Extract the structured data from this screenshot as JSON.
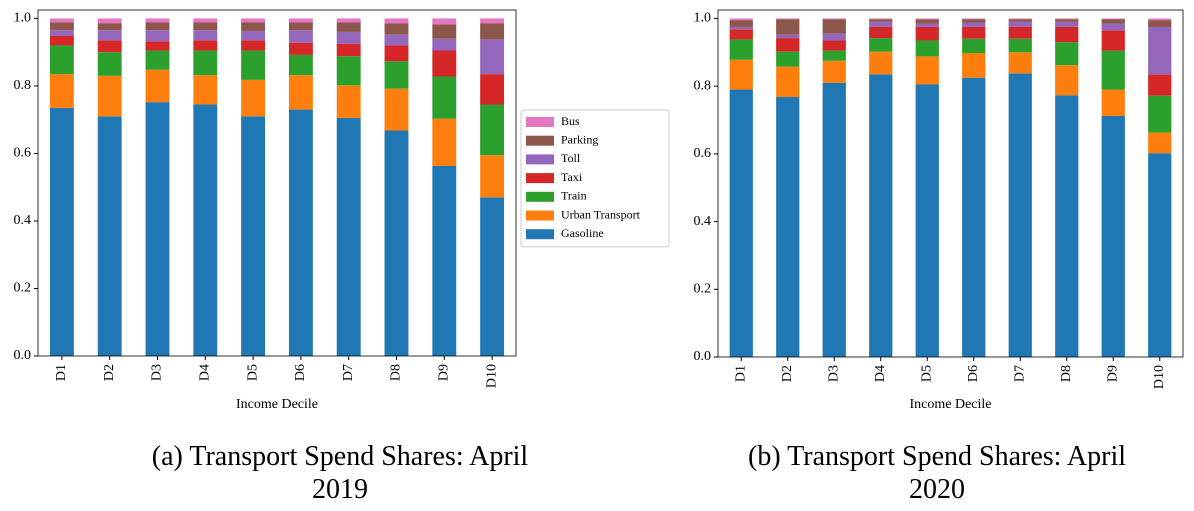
{
  "chart_data": [
    {
      "type": "bar",
      "stacked": true,
      "caption": "(a) Transport Spend Shares: April 2019",
      "x_label": "Income Decile",
      "categories": [
        "D1",
        "D2",
        "D3",
        "D4",
        "D5",
        "D6",
        "D7",
        "D8",
        "D9",
        "D10"
      ],
      "ylim": [
        0,
        1.025
      ],
      "yticks": [
        {
          "value": 0,
          "label": "0.0"
        },
        0.2,
        0.4,
        0.6,
        0.8,
        {
          "value": 1,
          "label": "1.0"
        }
      ],
      "legend": "outside right",
      "series": [
        {
          "name": "Gasoline",
          "color": "#1f77b4",
          "values": [
            0.735,
            0.71,
            0.752,
            0.745,
            0.71,
            0.73,
            0.705,
            0.668,
            0.563,
            0.47
          ]
        },
        {
          "name": "Urban Transport",
          "color": "#ff7f0e",
          "values": [
            0.1,
            0.12,
            0.096,
            0.087,
            0.108,
            0.102,
            0.097,
            0.124,
            0.14,
            0.125
          ]
        },
        {
          "name": "Train",
          "color": "#2ca02c",
          "values": [
            0.085,
            0.07,
            0.057,
            0.073,
            0.087,
            0.06,
            0.086,
            0.081,
            0.125,
            0.15
          ]
        },
        {
          "name": "Taxi",
          "color": "#d62728",
          "values": [
            0.028,
            0.035,
            0.027,
            0.03,
            0.03,
            0.036,
            0.037,
            0.047,
            0.077,
            0.09
          ]
        },
        {
          "name": "Toll",
          "color": "#9467bd",
          "values": [
            0.017,
            0.03,
            0.033,
            0.03,
            0.028,
            0.037,
            0.035,
            0.032,
            0.035,
            0.103
          ]
        },
        {
          "name": "Parking",
          "color": "#8c564b",
          "values": [
            0.023,
            0.02,
            0.023,
            0.023,
            0.025,
            0.023,
            0.028,
            0.033,
            0.042,
            0.047
          ]
        },
        {
          "name": "Bus",
          "color": "#e377c2",
          "values": [
            0.012,
            0.015,
            0.012,
            0.012,
            0.012,
            0.012,
            0.012,
            0.015,
            0.018,
            0.015
          ]
        }
      ]
    },
    {
      "type": "bar",
      "stacked": true,
      "caption": "(b) Transport Spend Shares: April 2020",
      "x_label": "Income Decile",
      "categories": [
        "D1",
        "D2",
        "D3",
        "D4",
        "D5",
        "D6",
        "D7",
        "D8",
        "D9",
        "D10"
      ],
      "ylim": [
        0,
        1.025
      ],
      "yticks": [
        {
          "value": 0,
          "label": "0.0"
        },
        0.2,
        0.4,
        0.6,
        0.8,
        {
          "value": 1,
          "label": "1.0"
        }
      ],
      "series": [
        {
          "color": "#1f77b4",
          "values": [
            0.79,
            0.768,
            0.81,
            0.835,
            0.805,
            0.825,
            0.838,
            0.773,
            0.712,
            0.602
          ]
        },
        {
          "color": "#ff7f0e",
          "values": [
            0.088,
            0.09,
            0.065,
            0.067,
            0.083,
            0.073,
            0.062,
            0.089,
            0.078,
            0.061
          ]
        },
        {
          "color": "#2ca02c",
          "values": [
            0.06,
            0.044,
            0.03,
            0.04,
            0.047,
            0.042,
            0.04,
            0.068,
            0.115,
            0.109
          ]
        },
        {
          "color": "#d62728",
          "values": [
            0.03,
            0.04,
            0.03,
            0.033,
            0.04,
            0.035,
            0.035,
            0.045,
            0.06,
            0.063
          ]
        },
        {
          "color": "#9467bd",
          "values": [
            0.007,
            0.01,
            0.02,
            0.015,
            0.01,
            0.013,
            0.015,
            0.015,
            0.02,
            0.14
          ]
        },
        {
          "color": "#8c564b",
          "values": [
            0.02,
            0.046,
            0.043,
            0.008,
            0.012,
            0.01,
            0.008,
            0.008,
            0.013,
            0.02
          ]
        },
        {
          "color": "#e377c2",
          "values": [
            0.005,
            0.002,
            0.002,
            0.002,
            0.003,
            0.002,
            0.002,
            0.002,
            0.002,
            0.005
          ]
        }
      ]
    }
  ]
}
